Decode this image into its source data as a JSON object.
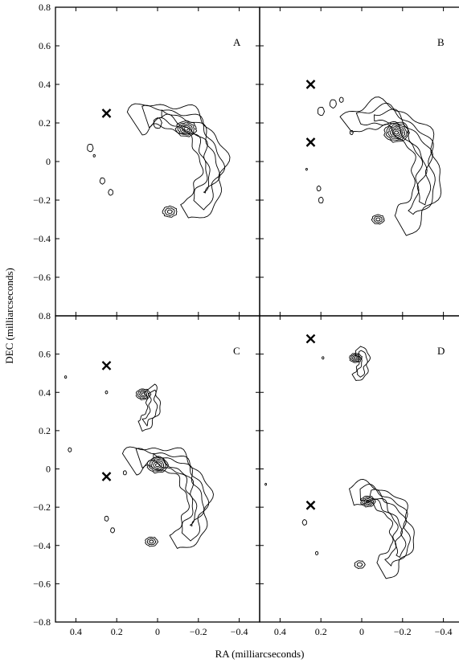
{
  "chart_data": {
    "type": "contour",
    "xlabel": "RA (milliarcseconds)",
    "ylabel": "DEC (milliarcseconds)",
    "xlim": [
      0.5,
      -0.5
    ],
    "ylim_top_row": [
      -0.8,
      0.8
    ],
    "ylim_bottom_row": [
      -0.8,
      0.8
    ],
    "x_ticks": [
      0.4,
      0.2,
      0,
      -0.2,
      -0.4
    ],
    "x_tick_labels": [
      "0.4",
      "0.2",
      "0",
      "−0.2",
      "−0.4"
    ],
    "y_ticks": [
      0.8,
      0.6,
      0.4,
      0.2,
      0,
      -0.2,
      -0.4,
      -0.6,
      -0.8
    ],
    "y_tick_labels_top": [
      "0.8",
      "0.6",
      "0.4",
      "0.2",
      "0",
      "−0.2",
      "−0.4",
      "−0.6",
      ""
    ],
    "y_tick_labels_bottom": [
      "0.8",
      "0.6",
      "0.4",
      "0.2",
      "0",
      "−0.2",
      "−0.4",
      "−0.6",
      "−0.8"
    ],
    "grid": false,
    "panels": [
      {
        "label": "A",
        "markers": [
          [
            0.25,
            0.25
          ]
        ],
        "arcs": [
          {
            "center": [
              -0.02,
              -0.03
            ],
            "rx": 0.25,
            "ry": 0.27,
            "start": -62,
            "end": 122,
            "width": 0.12
          },
          {
            "center": [
              -0.02,
              -0.03
            ],
            "rx": 0.25,
            "ry": 0.27,
            "start": -45,
            "end": 108,
            "width": 0.07
          },
          {
            "center": [
              -0.02,
              -0.03
            ],
            "rx": 0.25,
            "ry": 0.27,
            "start": -30,
            "end": 90,
            "width": 0.035
          }
        ],
        "knots": [
          {
            "center": [
              -0.14,
              0.17
            ],
            "r": 0.05,
            "rings": 5
          },
          {
            "center": [
              -0.06,
              -0.26
            ],
            "r": 0.035,
            "rings": 3
          }
        ],
        "blobs": [
          {
            "center": [
              0.0,
              0.2
            ],
            "r": 0.025
          },
          {
            "center": [
              0.33,
              0.07
            ],
            "r": 0.018
          },
          {
            "center": [
              0.27,
              -0.1
            ],
            "r": 0.015
          },
          {
            "center": [
              0.23,
              -0.16
            ],
            "r": 0.014
          },
          {
            "center": [
              0.31,
              0.03
            ],
            "r": 0.006
          }
        ]
      },
      {
        "label": "B",
        "markers": [
          [
            0.25,
            0.4
          ],
          [
            0.25,
            0.1
          ]
        ],
        "arcs": [
          {
            "center": [
              -0.07,
              -0.06
            ],
            "rx": 0.25,
            "ry": 0.3,
            "start": -62,
            "end": 125,
            "width": 0.12
          },
          {
            "center": [
              -0.07,
              -0.06
            ],
            "rx": 0.25,
            "ry": 0.3,
            "start": -45,
            "end": 110,
            "width": 0.07
          },
          {
            "center": [
              -0.07,
              -0.06
            ],
            "rx": 0.25,
            "ry": 0.3,
            "start": -30,
            "end": 92,
            "width": 0.035
          }
        ],
        "knots": [
          {
            "center": [
              -0.17,
              0.15
            ],
            "r": 0.06,
            "rings": 6
          },
          {
            "center": [
              -0.08,
              -0.3
            ],
            "r": 0.03,
            "rings": 3
          }
        ],
        "blobs": [
          {
            "center": [
              0.2,
              0.26
            ],
            "r": 0.02
          },
          {
            "center": [
              0.14,
              0.3
            ],
            "r": 0.02
          },
          {
            "center": [
              0.1,
              0.32
            ],
            "r": 0.012
          },
          {
            "center": [
              0.21,
              -0.14
            ],
            "r": 0.012
          },
          {
            "center": [
              0.2,
              -0.2
            ],
            "r": 0.014
          },
          {
            "center": [
              0.05,
              0.15
            ],
            "r": 0.01
          },
          {
            "center": [
              0.27,
              -0.04
            ],
            "r": 0.005
          }
        ]
      },
      {
        "label": "C",
        "markers": [
          [
            0.25,
            0.54
          ],
          [
            0.25,
            -0.04
          ]
        ],
        "arcs": [
          {
            "center": [
              0.02,
              -0.18
            ],
            "rx": 0.22,
            "ry": 0.24,
            "start": -62,
            "end": 122,
            "width": 0.11
          },
          {
            "center": [
              0.02,
              -0.18
            ],
            "rx": 0.22,
            "ry": 0.24,
            "start": -45,
            "end": 108,
            "width": 0.065
          },
          {
            "center": [
              0.02,
              -0.18
            ],
            "rx": 0.22,
            "ry": 0.24,
            "start": -30,
            "end": 90,
            "width": 0.03
          },
          {
            "center": [
              0.12,
              0.34
            ],
            "rx": 0.1,
            "ry": 0.12,
            "start": -70,
            "end": 40,
            "width": 0.06
          },
          {
            "center": [
              0.12,
              0.34
            ],
            "rx": 0.1,
            "ry": 0.12,
            "start": -55,
            "end": 30,
            "width": 0.03
          }
        ],
        "knots": [
          {
            "center": [
              0.0,
              0.02
            ],
            "r": 0.05,
            "rings": 5
          },
          {
            "center": [
              0.07,
              0.39
            ],
            "r": 0.035,
            "rings": 4
          },
          {
            "center": [
              0.03,
              -0.38
            ],
            "r": 0.03,
            "rings": 3
          }
        ],
        "blobs": [
          {
            "center": [
              0.45,
              0.48
            ],
            "r": 0.006
          },
          {
            "center": [
              0.43,
              0.1
            ],
            "r": 0.01
          },
          {
            "center": [
              0.25,
              0.4
            ],
            "r": 0.007
          },
          {
            "center": [
              0.16,
              -0.02
            ],
            "r": 0.01
          },
          {
            "center": [
              0.25,
              -0.26
            ],
            "r": 0.012
          },
          {
            "center": [
              0.22,
              -0.32
            ],
            "r": 0.012
          }
        ]
      },
      {
        "label": "D",
        "markers": [
          [
            0.25,
            0.68
          ],
          [
            0.25,
            -0.19
          ]
        ],
        "arcs": [
          {
            "center": [
              0.0,
              -0.34
            ],
            "rx": 0.2,
            "ry": 0.21,
            "start": -62,
            "end": 105,
            "width": 0.1
          },
          {
            "center": [
              0.0,
              -0.34
            ],
            "rx": 0.2,
            "ry": 0.21,
            "start": -48,
            "end": 92,
            "width": 0.06
          },
          {
            "center": [
              0.0,
              -0.34
            ],
            "rx": 0.2,
            "ry": 0.21,
            "start": -32,
            "end": 78,
            "width": 0.025
          },
          {
            "center": [
              0.08,
              0.56
            ],
            "rx": 0.09,
            "ry": 0.1,
            "start": -60,
            "end": 45,
            "width": 0.05
          },
          {
            "center": [
              0.08,
              0.56
            ],
            "rx": 0.09,
            "ry": 0.1,
            "start": -45,
            "end": 35,
            "width": 0.025
          }
        ],
        "knots": [
          {
            "center": [
              -0.03,
              -0.17
            ],
            "r": 0.035,
            "rings": 4
          },
          {
            "center": [
              0.03,
              0.58
            ],
            "r": 0.03,
            "rings": 4
          },
          {
            "center": [
              0.01,
              -0.5
            ],
            "r": 0.025,
            "rings": 2
          }
        ],
        "blobs": [
          {
            "center": [
              0.47,
              -0.08
            ],
            "r": 0.005
          },
          {
            "center": [
              0.28,
              -0.28
            ],
            "r": 0.013
          },
          {
            "center": [
              0.22,
              -0.44
            ],
            "r": 0.008
          },
          {
            "center": [
              0.19,
              0.58
            ],
            "r": 0.006
          }
        ]
      }
    ]
  }
}
